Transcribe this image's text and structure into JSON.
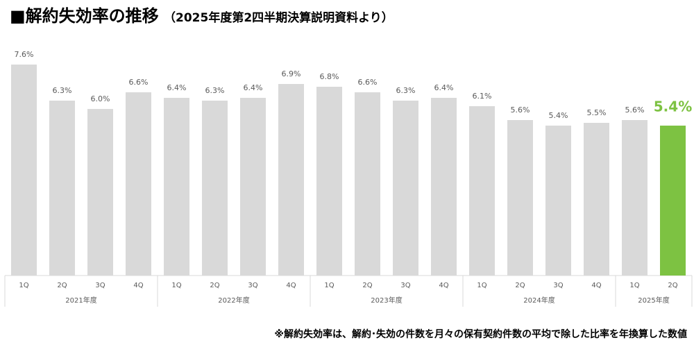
{
  "chart_data": {
    "type": "bar",
    "title": "■解約失効率の推移",
    "subtitle": "（2025年度第2四半期決算説明資料より）",
    "groups": [
      {
        "label": "2021年度",
        "categories": [
          "1Q",
          "2Q",
          "3Q",
          "4Q"
        ]
      },
      {
        "label": "2022年度",
        "categories": [
          "1Q",
          "2Q",
          "3Q",
          "4Q"
        ]
      },
      {
        "label": "2023年度",
        "categories": [
          "1Q",
          "2Q",
          "3Q",
          "4Q"
        ]
      },
      {
        "label": "2024年度",
        "categories": [
          "1Q",
          "2Q",
          "3Q",
          "4Q"
        ]
      },
      {
        "label": "2025年度",
        "categories": [
          "1Q",
          "2Q"
        ]
      }
    ],
    "values": [
      7.6,
      6.3,
      6.0,
      6.6,
      6.4,
      6.3,
      6.4,
      6.9,
      6.8,
      6.6,
      6.3,
      6.4,
      6.1,
      5.6,
      5.4,
      5.5,
      5.6,
      5.4
    ],
    "value_labels": [
      "7.6%",
      "6.3%",
      "6.0%",
      "6.6%",
      "6.4%",
      "6.3%",
      "6.4%",
      "6.9%",
      "6.8%",
      "6.6%",
      "6.3%",
      "6.4%",
      "6.1%",
      "5.6%",
      "5.4%",
      "5.5%",
      "5.6%",
      "5.4%"
    ],
    "colors": [
      "#d9d9d9",
      "#d9d9d9",
      "#d9d9d9",
      "#d9d9d9",
      "#d9d9d9",
      "#d9d9d9",
      "#d9d9d9",
      "#d9d9d9",
      "#d9d9d9",
      "#d9d9d9",
      "#d9d9d9",
      "#d9d9d9",
      "#d9d9d9",
      "#d9d9d9",
      "#d9d9d9",
      "#d9d9d9",
      "#d9d9d9",
      "#7dc242"
    ],
    "note": "※解約失効率は、解約･失効の件数を月々の保有契約件数の平均で除した比率を年換算した数値"
  }
}
